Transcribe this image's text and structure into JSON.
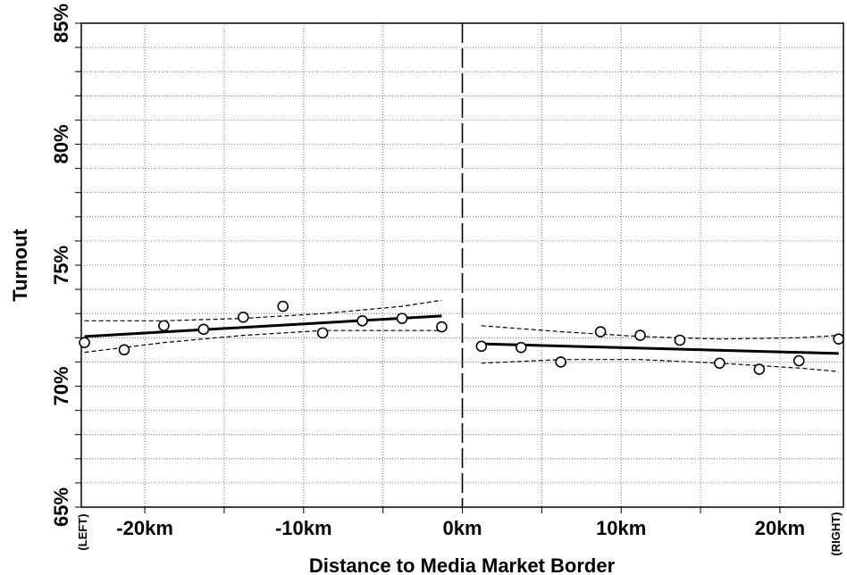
{
  "chart_data": {
    "type": "scatter",
    "xlabel": "Distance to Media Market Border",
    "ylabel": "Turnout",
    "xlim": [
      -24,
      24
    ],
    "ylim": [
      65,
      85
    ],
    "x_ticks": [
      {
        "value": -20,
        "label": "-20km"
      },
      {
        "value": -10,
        "label": "-10km"
      },
      {
        "value": 0,
        "label": "0km"
      },
      {
        "value": 10,
        "label": "10km"
      },
      {
        "value": 20,
        "label": "20km"
      }
    ],
    "y_ticks": [
      {
        "value": 65,
        "label": "65%"
      },
      {
        "value": 70,
        "label": "70%"
      },
      {
        "value": 75,
        "label": "75%"
      },
      {
        "value": 80,
        "label": "80%"
      },
      {
        "value": 85,
        "label": "85%"
      }
    ],
    "side_labels": {
      "left": "(LEFT)",
      "right": "(RIGHT)"
    },
    "grid": true,
    "border_x": 0,
    "series": [
      {
        "side": "left",
        "points": [
          {
            "x": -23.8,
            "y": 71.8
          },
          {
            "x": -21.3,
            "y": 71.5
          },
          {
            "x": -18.8,
            "y": 72.5
          },
          {
            "x": -16.3,
            "y": 72.35
          },
          {
            "x": -13.8,
            "y": 72.85
          },
          {
            "x": -11.3,
            "y": 73.3
          },
          {
            "x": -8.8,
            "y": 72.2
          },
          {
            "x": -6.3,
            "y": 72.7
          },
          {
            "x": -3.8,
            "y": 72.8
          },
          {
            "x": -1.3,
            "y": 72.45
          }
        ],
        "fit": [
          {
            "x": -23.8,
            "y": 72.05
          },
          {
            "x": -1.3,
            "y": 72.9
          }
        ],
        "upper_ci": [
          {
            "x": -23.8,
            "y": 72.7
          },
          {
            "x": -18.8,
            "y": 72.7
          },
          {
            "x": -13.8,
            "y": 72.8
          },
          {
            "x": -8.8,
            "y": 73.0
          },
          {
            "x": -3.8,
            "y": 73.3
          },
          {
            "x": -1.3,
            "y": 73.55
          }
        ],
        "lower_ci": [
          {
            "x": -23.8,
            "y": 71.4
          },
          {
            "x": -18.8,
            "y": 71.8
          },
          {
            "x": -13.8,
            "y": 72.1
          },
          {
            "x": -8.8,
            "y": 72.3
          },
          {
            "x": -3.8,
            "y": 72.3
          },
          {
            "x": -1.3,
            "y": 72.3
          }
        ]
      },
      {
        "side": "right",
        "points": [
          {
            "x": 1.2,
            "y": 71.65
          },
          {
            "x": 3.7,
            "y": 71.6
          },
          {
            "x": 6.2,
            "y": 71.0
          },
          {
            "x": 8.7,
            "y": 72.25
          },
          {
            "x": 11.2,
            "y": 72.1
          },
          {
            "x": 13.7,
            "y": 71.9
          },
          {
            "x": 16.2,
            "y": 70.95
          },
          {
            "x": 18.7,
            "y": 70.7
          },
          {
            "x": 21.2,
            "y": 71.05
          },
          {
            "x": 23.7,
            "y": 71.95
          }
        ],
        "fit": [
          {
            "x": 1.2,
            "y": 71.75
          },
          {
            "x": 23.7,
            "y": 71.35
          }
        ],
        "upper_ci": [
          {
            "x": 1.2,
            "y": 72.5
          },
          {
            "x": 6.2,
            "y": 72.25
          },
          {
            "x": 11.2,
            "y": 72.05
          },
          {
            "x": 16.2,
            "y": 71.95
          },
          {
            "x": 21.2,
            "y": 72.0
          },
          {
            "x": 23.7,
            "y": 72.1
          }
        ],
        "lower_ci": [
          {
            "x": 1.2,
            "y": 70.95
          },
          {
            "x": 6.2,
            "y": 71.1
          },
          {
            "x": 11.2,
            "y": 71.1
          },
          {
            "x": 16.2,
            "y": 70.95
          },
          {
            "x": 21.2,
            "y": 70.75
          },
          {
            "x": 23.7,
            "y": 70.6
          }
        ]
      }
    ]
  }
}
